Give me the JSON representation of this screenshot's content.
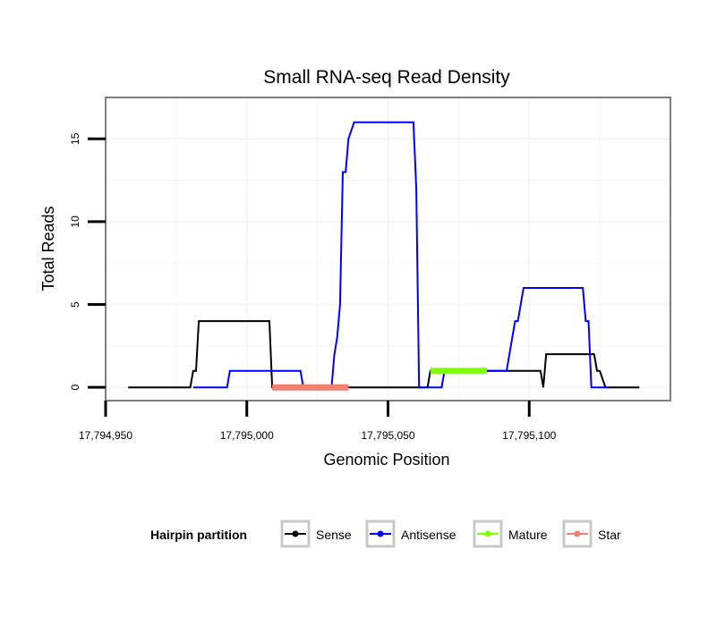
{
  "chart_data": {
    "type": "line",
    "title": "Small RNA-seq Read Density",
    "xlabel": "Genomic Position",
    "ylabel": "Total Reads",
    "xlim": [
      17794950,
      17795150
    ],
    "ylim": [
      -0.8,
      17.5
    ],
    "x_ticks": [
      17794950,
      17795000,
      17795050,
      17795100
    ],
    "x_tick_labels": [
      "17,794,950",
      "17,795,000",
      "17,795,050",
      "17,795,100"
    ],
    "y_ticks": [
      0,
      5,
      10,
      15
    ],
    "y_tick_labels": [
      "0",
      "5",
      "10",
      "15"
    ],
    "grid": true,
    "legend": {
      "title": "Hairpin partition",
      "position": "bottom",
      "entries": [
        {
          "name": "Sense",
          "color": "#000000"
        },
        {
          "name": "Antisense",
          "color": "#0000ff"
        },
        {
          "name": "Mature",
          "color": "#7fff00"
        },
        {
          "name": "Star",
          "color": "#f08070"
        }
      ]
    },
    "series": [
      {
        "name": "Sense",
        "color": "#000000",
        "x": [
          17794958,
          17794980,
          17794981,
          17794982,
          17794983,
          17795008,
          17795009,
          17795064,
          17795065,
          17795066,
          17795074,
          17795075,
          17795104,
          17795105,
          17795106,
          17795107,
          17795123,
          17795124,
          17795125,
          17795127,
          17795139
        ],
        "y": [
          0,
          0,
          1,
          1,
          4,
          4,
          0,
          0,
          1,
          1,
          1,
          1,
          1,
          0,
          2,
          2,
          2,
          1,
          1,
          0,
          0
        ]
      },
      {
        "name": "Antisense",
        "color": "#0000ff",
        "x": [
          17794981,
          17794993,
          17794994,
          17795019,
          17795020,
          17795030,
          17795031,
          17795032,
          17795033,
          17795034,
          17795035,
          17795036,
          17795038,
          17795059,
          17795060,
          17795061,
          17795066,
          17795067,
          17795069,
          17795070,
          17795092,
          17795094,
          17795095,
          17795096,
          17795098,
          17795119,
          17795120,
          17795121,
          17795122,
          17795128
        ],
        "y": [
          0,
          0,
          1,
          1,
          0,
          0,
          2,
          3,
          5,
          13,
          13,
          15,
          16,
          16,
          12,
          0,
          0,
          0,
          0,
          1,
          1,
          3,
          4,
          4,
          6,
          6,
          4,
          4,
          0,
          0
        ]
      },
      {
        "name": "Mature",
        "color": "#7fff00",
        "segment": true,
        "x": [
          17795065,
          17795085
        ],
        "y": [
          1,
          1
        ]
      },
      {
        "name": "Star",
        "color": "#f08070",
        "segment": true,
        "x": [
          17795009,
          17795036
        ],
        "y": [
          0,
          0
        ]
      }
    ]
  }
}
